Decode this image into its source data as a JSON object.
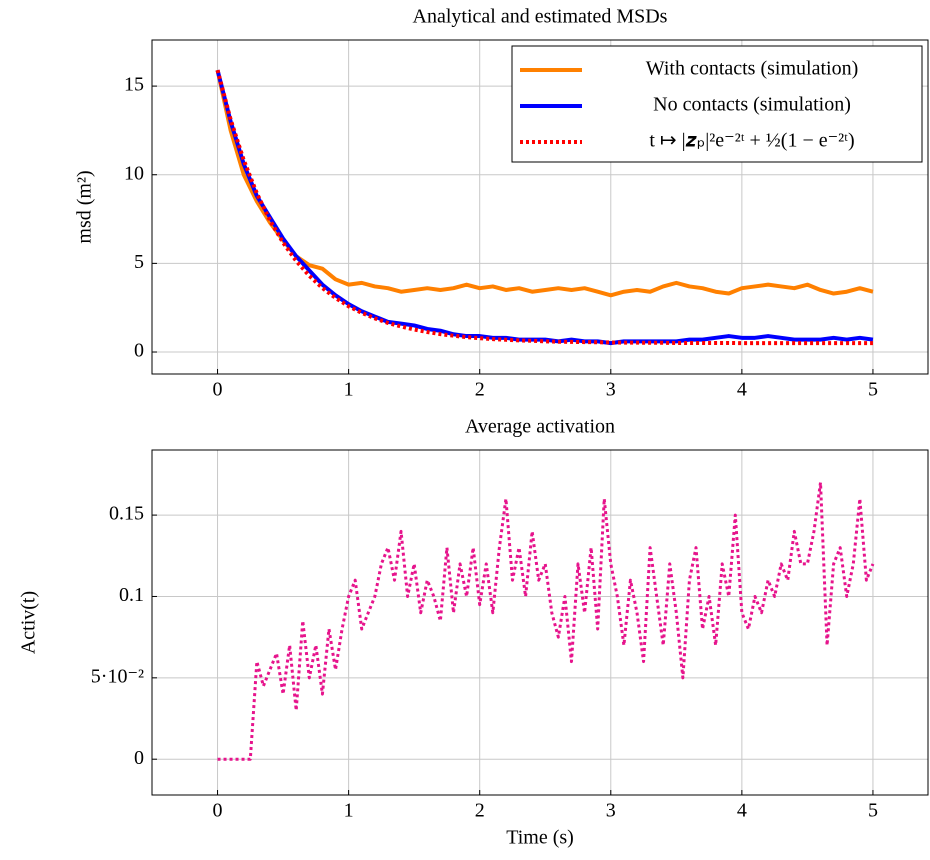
{
  "chart_data": [
    {
      "type": "line",
      "title": "Analytical and estimated MSDs",
      "ylabel": "msd (m²)",
      "x": [
        0,
        0.1,
        0.2,
        0.3,
        0.4,
        0.5,
        0.6,
        0.7,
        0.8,
        0.9,
        1,
        1.1,
        1.2,
        1.3,
        1.4,
        1.5,
        1.6,
        1.7,
        1.8,
        1.9,
        2,
        2.1,
        2.2,
        2.3,
        2.4,
        2.5,
        2.6,
        2.7,
        2.8,
        2.9,
        3,
        3.1,
        3.2,
        3.3,
        3.4,
        3.5,
        3.6,
        3.7,
        3.8,
        3.9,
        4,
        4.1,
        4.2,
        4.3,
        4.4,
        4.5,
        4.6,
        4.7,
        4.8,
        4.9,
        5
      ],
      "series": [
        {
          "name": "With contacts (simulation)",
          "color": "#ff8000",
          "style": "solid",
          "values": [
            15.9,
            12.5,
            10.0,
            8.5,
            7.3,
            6.3,
            5.4,
            4.9,
            4.7,
            4.1,
            3.8,
            3.9,
            3.7,
            3.6,
            3.4,
            3.5,
            3.6,
            3.5,
            3.6,
            3.8,
            3.6,
            3.7,
            3.5,
            3.6,
            3.4,
            3.5,
            3.6,
            3.5,
            3.6,
            3.4,
            3.2,
            3.4,
            3.5,
            3.4,
            3.7,
            3.9,
            3.7,
            3.6,
            3.4,
            3.3,
            3.6,
            3.7,
            3.8,
            3.7,
            3.6,
            3.8,
            3.5,
            3.3,
            3.4,
            3.6,
            3.4
          ]
        },
        {
          "name": "No contacts (simulation)",
          "color": "#0000ff",
          "style": "solid",
          "values": [
            15.9,
            13.0,
            10.6,
            8.8,
            7.6,
            6.4,
            5.4,
            4.6,
            3.8,
            3.2,
            2.7,
            2.3,
            2.0,
            1.7,
            1.6,
            1.5,
            1.3,
            1.2,
            1.0,
            0.9,
            0.9,
            0.8,
            0.8,
            0.7,
            0.7,
            0.7,
            0.6,
            0.7,
            0.6,
            0.6,
            0.5,
            0.6,
            0.6,
            0.6,
            0.6,
            0.6,
            0.7,
            0.7,
            0.8,
            0.9,
            0.8,
            0.8,
            0.9,
            0.8,
            0.7,
            0.7,
            0.7,
            0.8,
            0.7,
            0.8,
            0.7
          ]
        },
        {
          "name": "t ↦ |𝒛ₚ|²e⁻²ᵗ + ½(1 − e⁻²ᵗ)",
          "color": "#ff0000",
          "style": "dotted",
          "values": [
            15.9,
            13.11,
            10.82,
            8.95,
            7.42,
            6.17,
            5.14,
            4.3,
            3.61,
            3.05,
            2.58,
            2.21,
            1.9,
            1.64,
            1.44,
            1.27,
            1.13,
            1.01,
            0.92,
            0.84,
            0.78,
            0.73,
            0.69,
            0.66,
            0.63,
            0.6,
            0.58,
            0.57,
            0.56,
            0.55,
            0.54,
            0.53,
            0.53,
            0.52,
            0.52,
            0.51,
            0.51,
            0.51,
            0.51,
            0.51,
            0.5,
            0.5,
            0.5,
            0.5,
            0.5,
            0.5,
            0.5,
            0.5,
            0.5,
            0.5,
            0.5
          ]
        }
      ],
      "xlim": [
        -0.5,
        5.42
      ],
      "ylim": [
        -1.24,
        17.6
      ],
      "xticks": [
        0,
        1,
        2,
        3,
        4,
        5
      ],
      "yticks": [
        0,
        5,
        10,
        15
      ],
      "grid": true,
      "legend": "upper-right"
    },
    {
      "type": "line",
      "title": "Average activation",
      "ylabel": "Activ(t)",
      "xlabel": "Time (s)",
      "x": [
        0,
        0.05,
        0.1,
        0.15,
        0.2,
        0.25,
        0.3,
        0.35,
        0.4,
        0.45,
        0.5,
        0.55,
        0.6,
        0.65,
        0.7,
        0.75,
        0.8,
        0.85,
        0.9,
        0.95,
        1,
        1.05,
        1.1,
        1.15,
        1.2,
        1.25,
        1.3,
        1.35,
        1.4,
        1.45,
        1.5,
        1.55,
        1.6,
        1.65,
        1.7,
        1.75,
        1.8,
        1.85,
        1.9,
        1.95,
        2,
        2.05,
        2.1,
        2.15,
        2.2,
        2.25,
        2.3,
        2.35,
        2.4,
        2.45,
        2.5,
        2.55,
        2.6,
        2.65,
        2.7,
        2.75,
        2.8,
        2.85,
        2.9,
        2.95,
        3,
        3.05,
        3.1,
        3.15,
        3.2,
        3.25,
        3.3,
        3.35,
        3.4,
        3.45,
        3.5,
        3.55,
        3.6,
        3.65,
        3.7,
        3.75,
        3.8,
        3.85,
        3.9,
        3.95,
        4,
        4.05,
        4.1,
        4.15,
        4.2,
        4.25,
        4.3,
        4.35,
        4.4,
        4.45,
        4.5,
        4.55,
        4.6,
        4.65,
        4.7,
        4.75,
        4.8,
        4.85,
        4.9,
        4.95,
        5
      ],
      "series": [
        {
          "color": "#e6148c",
          "style": "dotted",
          "values": [
            0,
            0,
            0,
            0,
            0,
            0,
            0.06,
            0.045,
            0.055,
            0.065,
            0.04,
            0.07,
            0.03,
            0.085,
            0.05,
            0.07,
            0.04,
            0.08,
            0.055,
            0.08,
            0.1,
            0.11,
            0.08,
            0.09,
            0.1,
            0.12,
            0.13,
            0.11,
            0.14,
            0.1,
            0.12,
            0.09,
            0.11,
            0.1,
            0.085,
            0.13,
            0.09,
            0.12,
            0.1,
            0.13,
            0.095,
            0.12,
            0.09,
            0.13,
            0.16,
            0.11,
            0.13,
            0.1,
            0.14,
            0.11,
            0.12,
            0.09,
            0.075,
            0.1,
            0.06,
            0.12,
            0.09,
            0.13,
            0.08,
            0.16,
            0.12,
            0.1,
            0.07,
            0.11,
            0.09,
            0.06,
            0.13,
            0.1,
            0.07,
            0.12,
            0.09,
            0.05,
            0.11,
            0.13,
            0.08,
            0.1,
            0.07,
            0.12,
            0.1,
            0.15,
            0.09,
            0.08,
            0.1,
            0.09,
            0.11,
            0.1,
            0.12,
            0.11,
            0.14,
            0.12,
            0.12,
            0.14,
            0.17,
            0.07,
            0.12,
            0.13,
            0.1,
            0.12,
            0.16,
            0.11,
            0.12
          ]
        }
      ],
      "xlim": [
        -0.5,
        5.42
      ],
      "ylim": [
        -0.022,
        0.19
      ],
      "xticks": [
        0,
        1,
        2,
        3,
        4,
        5
      ],
      "yticks": [
        0,
        {
          "value": 0.05,
          "label": "5·10⁻²"
        },
        0.1,
        0.15
      ],
      "grid": true
    }
  ]
}
